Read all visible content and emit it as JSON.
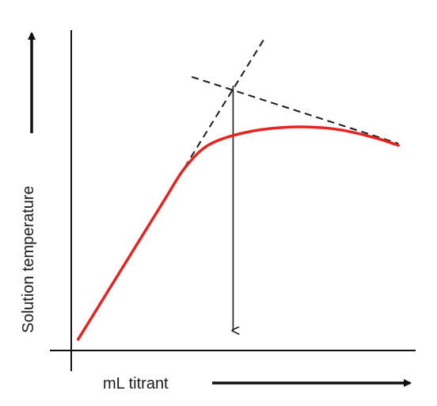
{
  "chart_data": {
    "type": "line",
    "title": "",
    "xlabel": "mL titrant",
    "ylabel": "Solution temperature",
    "axis_ticks": false,
    "grid": false,
    "series": [
      {
        "style": "solid",
        "color": "#e8231f",
        "x": [
          0.0,
          0.5,
          1.0,
          1.5,
          2.0,
          2.5,
          3.0,
          3.4,
          3.7,
          4.0,
          4.4,
          4.8,
          5.2,
          5.6,
          6.0,
          6.4,
          6.8,
          7.2,
          7.6,
          8.0,
          8.4,
          8.8,
          9.3
        ],
        "y": [
          0.3,
          1.55,
          2.8,
          4.05,
          5.3,
          6.55,
          7.8,
          8.55,
          8.95,
          9.2,
          9.42,
          9.58,
          9.7,
          9.78,
          9.83,
          9.85,
          9.84,
          9.8,
          9.72,
          9.6,
          9.45,
          9.28,
          9.02
        ]
      }
    ],
    "annotations": [
      {
        "kind": "dashed-line",
        "color": "#1a1a1a",
        "x": [
          0.0,
          5.4
        ],
        "y": [
          0.3,
          13.8
        ]
      },
      {
        "kind": "dashed-line",
        "color": "#1a1a1a",
        "x": [
          3.3,
          9.3
        ],
        "y": [
          12.1,
          9.1
        ]
      },
      {
        "kind": "arrow",
        "color": "#1a1a1a",
        "x": [
          4.5,
          4.5
        ],
        "y": [
          11.7,
          0.7
        ]
      }
    ],
    "xlim": [
      -0.2,
      9.8
    ],
    "ylim": [
      -0.2,
      14.2
    ]
  }
}
